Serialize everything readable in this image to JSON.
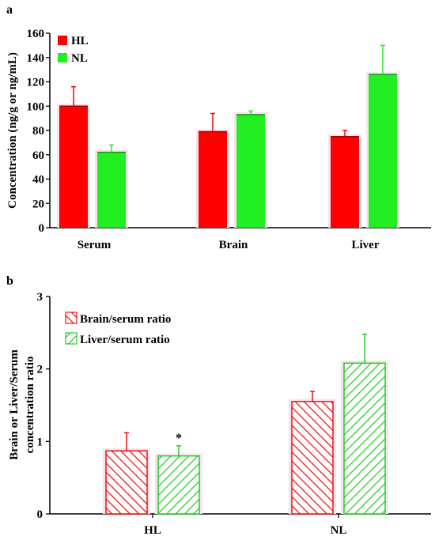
{
  "chart_data": [
    {
      "panel_label": "a",
      "type": "bar",
      "categories": [
        "Serum",
        "Brain",
        "Liver"
      ],
      "series": [
        {
          "name": "HL",
          "values": [
            100,
            79,
            75
          ],
          "errors": [
            16,
            15,
            5
          ],
          "color": "#ff0000"
        },
        {
          "name": "NL",
          "values": [
            62,
            93,
            126
          ],
          "errors": [
            6,
            3,
            24
          ],
          "color": "#22ee22"
        }
      ],
      "ylabel": "Concentration (ng/g or ng/mL)",
      "ylim": [
        0,
        160
      ],
      "yticks": [
        0,
        20,
        40,
        60,
        80,
        100,
        120,
        140,
        160
      ],
      "legend_position": "top-left",
      "grid": false
    },
    {
      "panel_label": "b",
      "type": "bar",
      "categories": [
        "HL",
        "NL"
      ],
      "series": [
        {
          "name": "Brain/serum  ratio",
          "values": [
            0.87,
            1.55
          ],
          "errors": [
            0.25,
            0.14
          ],
          "color": "#ee1111",
          "pattern": "hatch-backslash"
        },
        {
          "name": "Liver/serum  ratio",
          "values": [
            0.8,
            2.08
          ],
          "errors": [
            0.14,
            0.4
          ],
          "color": "#22cc22",
          "pattern": "hatch-slash"
        }
      ],
      "annotations": [
        {
          "text": "*",
          "category": "HL",
          "series": 1
        }
      ],
      "ylabel_lines": [
        "Brain or Liver/Serum",
        "concentration ratio"
      ],
      "ylim": [
        0,
        3
      ],
      "yticks": [
        0,
        1,
        2,
        3
      ],
      "legend_position": "top-left",
      "grid": false
    }
  ]
}
